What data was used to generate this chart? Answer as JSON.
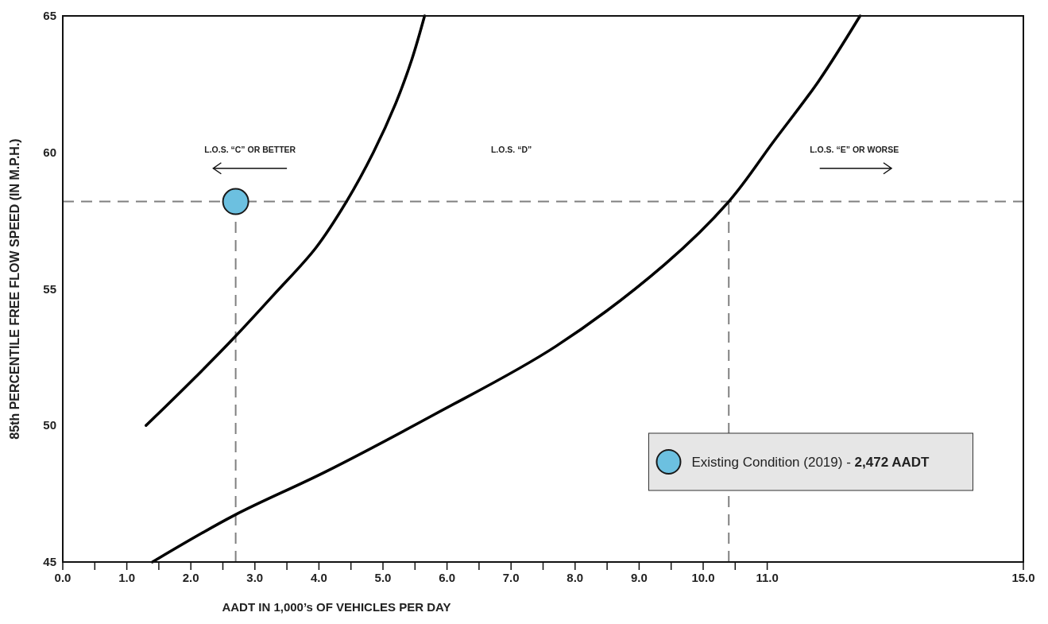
{
  "chart_data": {
    "type": "line",
    "xlabel": "AADT IN 1,000’s OF VEHICLES PER DAY",
    "ylabel": "85th PERCENTILE FREE FLOW SPEED (IN M.P.H.)",
    "xlim": [
      0,
      15
    ],
    "ylim": [
      45,
      65
    ],
    "xticks": [
      {
        "value": 0,
        "label": "0.0"
      },
      {
        "value": 0.5,
        "label": null
      },
      {
        "value": 1,
        "label": "1.0"
      },
      {
        "value": 1.5,
        "label": null
      },
      {
        "value": 2,
        "label": "2.0"
      },
      {
        "value": 2.5,
        "label": null
      },
      {
        "value": 3,
        "label": "3.0"
      },
      {
        "value": 3.5,
        "label": null
      },
      {
        "value": 4,
        "label": "4.0"
      },
      {
        "value": 4.5,
        "label": null
      },
      {
        "value": 5,
        "label": "5.0"
      },
      {
        "value": 5.5,
        "label": null
      },
      {
        "value": 6,
        "label": "6.0"
      },
      {
        "value": 6.5,
        "label": null
      },
      {
        "value": 7,
        "label": "7.0"
      },
      {
        "value": 7.5,
        "label": null
      },
      {
        "value": 8,
        "label": "8.0"
      },
      {
        "value": 8.5,
        "label": null
      },
      {
        "value": 9,
        "label": "9.0"
      },
      {
        "value": 9.5,
        "label": null
      },
      {
        "value": 10,
        "label": "10.0"
      },
      {
        "value": 10.5,
        "label": null
      },
      {
        "value": 11,
        "label": "11.0"
      },
      {
        "value": 15,
        "label": "15.0"
      }
    ],
    "yticks": [
      45,
      50,
      55,
      60,
      65
    ],
    "grid": false,
    "legend": "bottom right",
    "line_style": "solid",
    "series": [
      {
        "color": "#000000",
        "x": [
          1.3,
          2.0,
          2.67,
          3.3,
          3.95,
          4.43,
          4.85,
          5.2,
          5.45,
          5.65
        ],
        "values": [
          50,
          51.6,
          53.2,
          54.8,
          56.5,
          58.2,
          60,
          61.8,
          63.4,
          65
        ]
      },
      {
        "color": "#000000",
        "x": [
          1.4,
          2.67,
          4.1,
          5.8,
          7.7,
          9.4,
          10.4,
          11.1,
          11.8,
          12.45
        ],
        "values": [
          45,
          46.7,
          48.3,
          50.4,
          52.9,
          55.9,
          58.2,
          60.4,
          62.6,
          65
        ]
      },
      {
        "type": "scatter",
        "name": "Existing Condition (2019) - 2,472 AADT",
        "color": "#6cc0e0",
        "marker": "circle",
        "x": [
          2.7
        ],
        "values": [
          58.2
        ]
      }
    ],
    "ref_lines": [
      {
        "axis": "y",
        "value": 58.2,
        "color": "#808080",
        "line_style": "dashed"
      },
      {
        "axis": "x",
        "value": 2.7,
        "color": "#808080",
        "line_style": "dashed"
      },
      {
        "axis": "x",
        "value": 10.4,
        "color": "#808080",
        "line_style": "dashed"
      }
    ],
    "annotations": [
      "L.O.S. “C” OR BETTER",
      "L.O.S. “D”",
      "L.O.S. “E” OR WORSE"
    ]
  }
}
